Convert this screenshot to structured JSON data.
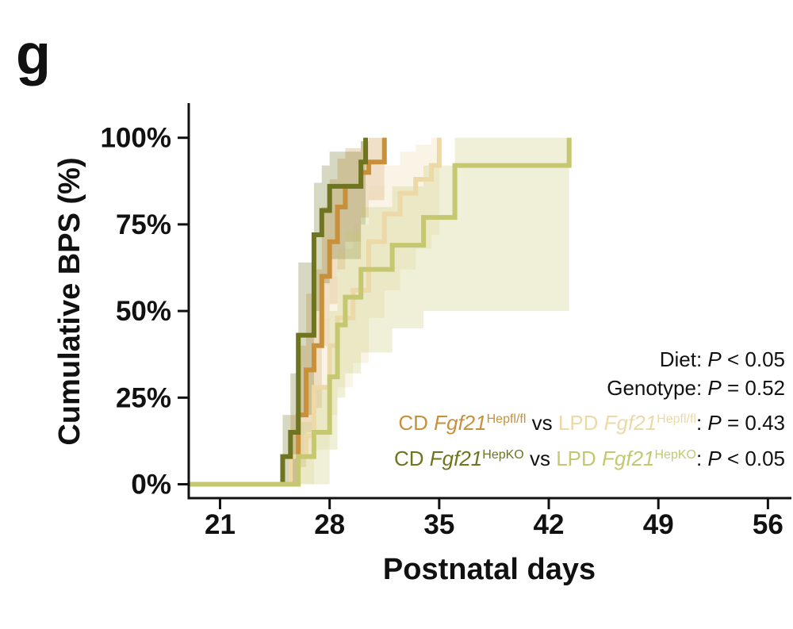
{
  "panel_label": "g",
  "chart_data": {
    "type": "line",
    "step": true,
    "title": "",
    "xlabel": "Postnatal days",
    "ylabel": "Cumulative BPS (%)",
    "xlim": [
      19,
      57.5
    ],
    "ylim": [
      -4,
      110
    ],
    "xticks": [
      21,
      28,
      35,
      42,
      49,
      56
    ],
    "yticks": [
      0,
      25,
      50,
      75,
      100
    ],
    "ytick_labels": [
      "0%",
      "25%",
      "50%",
      "75%",
      "100%"
    ],
    "grid": false,
    "confidence_bands": true,
    "series": [
      {
        "color": "#C8903A",
        "x": [
          19,
          25.5,
          26,
          26.5,
          27,
          27.5,
          28,
          28.5,
          29,
          30,
          30.5,
          31,
          31.5
        ],
        "y": [
          0,
          8,
          20,
          33,
          40,
          60,
          70,
          80,
          86,
          90,
          93,
          93,
          100
        ],
        "lower": [
          0,
          0,
          5,
          15,
          22,
          40,
          52,
          62,
          70,
          77,
          82,
          82,
          82
        ],
        "upper": [
          0,
          20,
          40,
          55,
          62,
          80,
          88,
          94,
          97,
          99,
          100,
          100,
          100
        ]
      },
      {
        "color": "#EDD9A8",
        "x": [
          19,
          25.5,
          26.5,
          27,
          28,
          28.5,
          29.5,
          30.5,
          31.5,
          32.5,
          33.5,
          34.5,
          35
        ],
        "y": [
          0,
          8,
          14,
          28,
          40,
          48,
          56,
          70,
          78,
          84,
          88,
          92,
          100
        ],
        "lower": [
          0,
          0,
          0,
          10,
          20,
          28,
          35,
          48,
          56,
          62,
          68,
          72,
          72
        ],
        "upper": [
          0,
          20,
          30,
          48,
          60,
          68,
          75,
          86,
          92,
          96,
          98,
          100,
          100
        ]
      },
      {
        "color": "#6E7420",
        "x": [
          19,
          25,
          25.5,
          26,
          27,
          27.5,
          28,
          29,
          30,
          30.3
        ],
        "y": [
          0,
          8,
          15,
          43,
          72,
          79,
          86,
          86,
          93,
          100
        ],
        "lower": [
          0,
          0,
          0,
          20,
          50,
          58,
          65,
          65,
          75,
          75
        ],
        "upper": [
          0,
          20,
          32,
          64,
          87,
          92,
          96,
          96,
          99,
          100
        ]
      },
      {
        "color": "#C5C870",
        "x": [
          19,
          26,
          27,
          28,
          28.5,
          29,
          30,
          31,
          32,
          33,
          34,
          35,
          36,
          43,
          43.3
        ],
        "y": [
          0,
          8,
          15,
          31,
          46,
          54,
          62,
          62,
          69,
          69,
          77,
          77,
          92,
          92,
          100
        ],
        "lower": [
          0,
          0,
          0,
          10,
          25,
          32,
          38,
          38,
          45,
          45,
          50,
          50,
          50,
          50,
          50
        ],
        "upper": [
          0,
          18,
          28,
          50,
          66,
          73,
          80,
          80,
          86,
          86,
          92,
          92,
          100,
          100,
          100
        ]
      }
    ],
    "annotations": [
      {
        "parts": [
          {
            "t": "Diet: "
          },
          {
            "t": "P",
            "style": "italic"
          },
          {
            "t": " < 0.05"
          }
        ]
      },
      {
        "parts": [
          {
            "t": "Genotype: "
          },
          {
            "t": "P",
            "style": "italic"
          },
          {
            "t": " = 0.52"
          }
        ]
      },
      {
        "parts": [
          {
            "t": "CD ",
            "color": "#C8903A"
          },
          {
            "t": "Fgf21",
            "style": "italic",
            "color": "#C8903A"
          },
          {
            "t": "Hepfl/fl",
            "sup": true,
            "color": "#C8903A"
          },
          {
            "t": " vs "
          },
          {
            "t": "LPD ",
            "color": "#EDD9A8"
          },
          {
            "t": "Fgf21",
            "style": "italic",
            "color": "#EDD9A8"
          },
          {
            "t": "Hepfl/fl",
            "sup": true,
            "color": "#EDD9A8"
          },
          {
            "t": ": "
          },
          {
            "t": "P",
            "style": "italic"
          },
          {
            "t": " = 0.43"
          }
        ]
      },
      {
        "parts": [
          {
            "t": "CD ",
            "color": "#6E7420"
          },
          {
            "t": "Fgf21",
            "style": "italic",
            "color": "#6E7420"
          },
          {
            "t": "HepKO",
            "sup": true,
            "color": "#6E7420"
          },
          {
            "t": " vs "
          },
          {
            "t": "LPD ",
            "color": "#C5C870"
          },
          {
            "t": "Fgf21",
            "style": "italic",
            "color": "#C5C870"
          },
          {
            "t": "HepKO",
            "sup": true,
            "color": "#C5C870"
          },
          {
            "t": ": "
          },
          {
            "t": "P",
            "style": "italic"
          },
          {
            "t": " < 0.05"
          }
        ]
      }
    ]
  }
}
